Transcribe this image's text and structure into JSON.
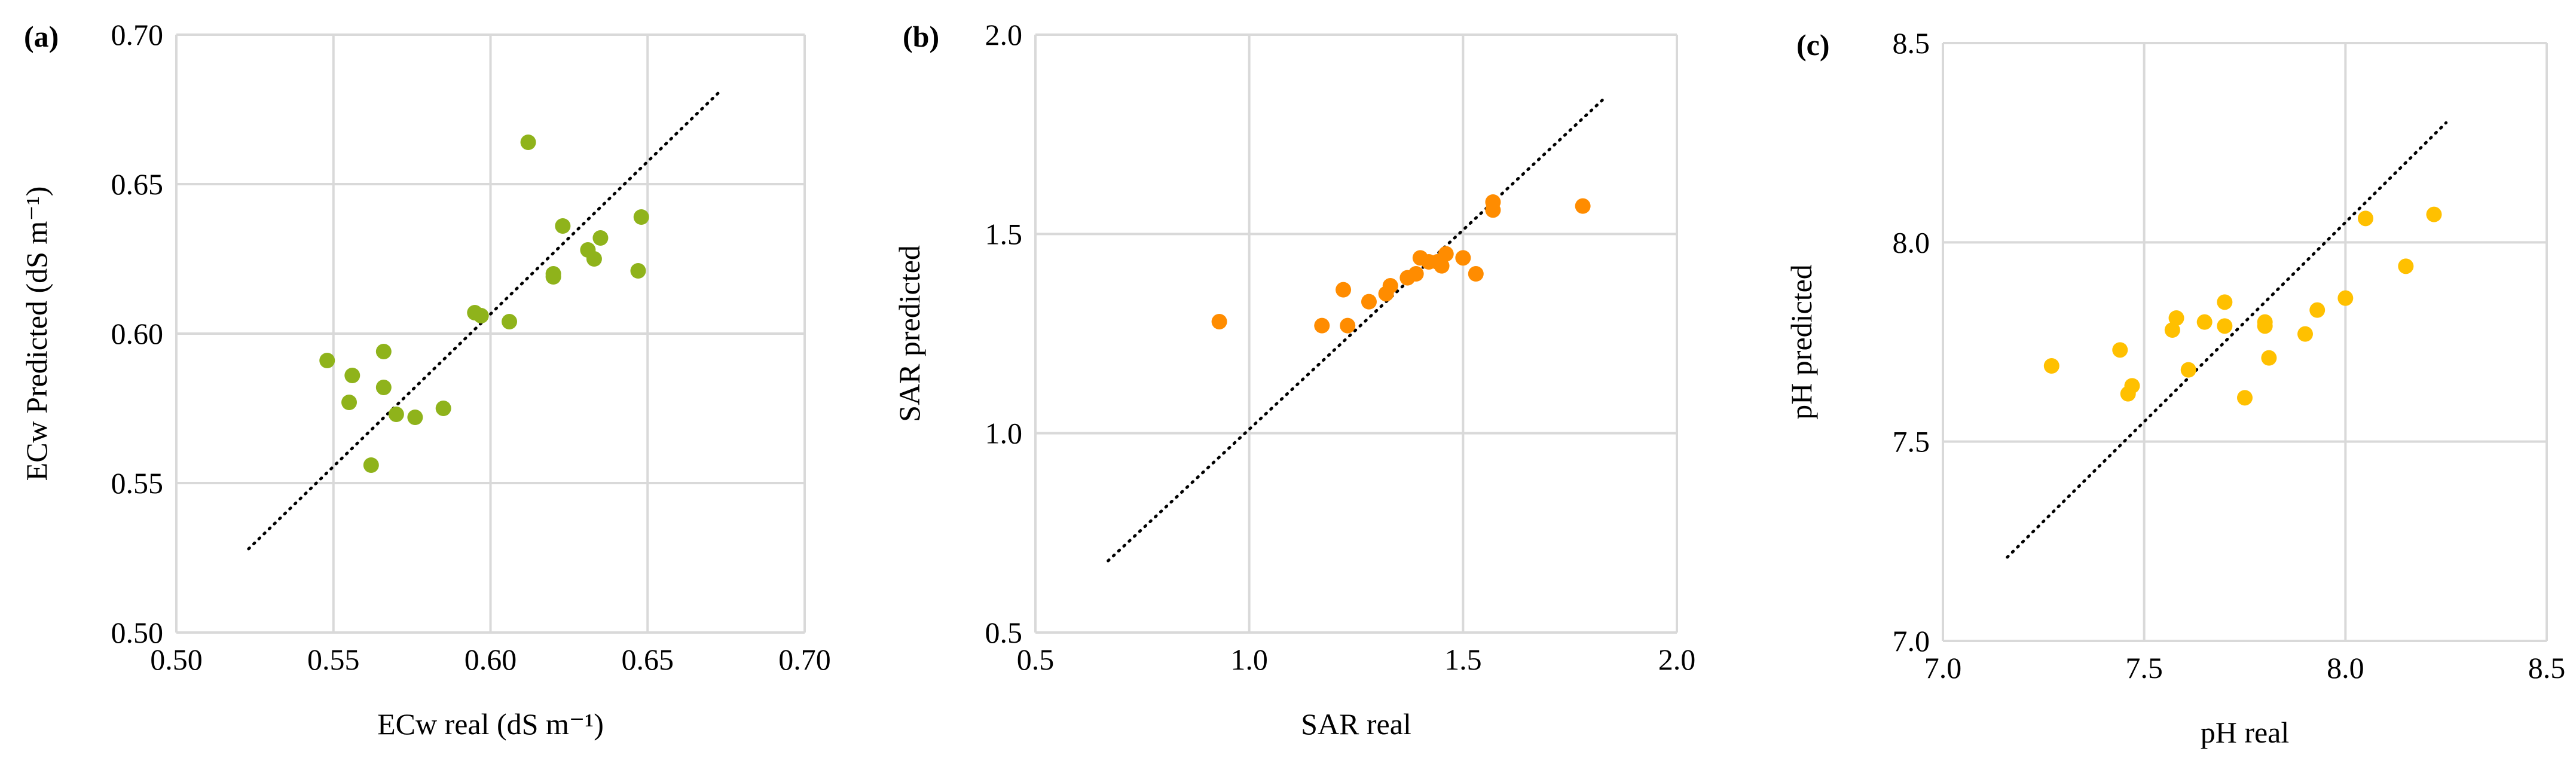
{
  "figure": {
    "panels": [
      "(a)",
      "(b)",
      "(c)"
    ]
  },
  "chart_data": [
    {
      "type": "scatter",
      "panel_label": "(a)",
      "xlabel": "ECw real (dS m⁻¹)",
      "ylabel": "ECw Predicted (dS m⁻¹)",
      "xlim": [
        0.5,
        0.7
      ],
      "ylim": [
        0.5,
        0.7
      ],
      "xticks": [
        0.5,
        0.55,
        0.6,
        0.65,
        0.7
      ],
      "yticks": [
        0.5,
        0.55,
        0.6,
        0.65,
        0.7
      ],
      "tick_labels_x": [
        "0.50",
        "0.55",
        "0.60",
        "0.65",
        "0.70"
      ],
      "tick_labels_y": [
        "0.50",
        "0.55",
        "0.60",
        "0.65",
        "0.70"
      ],
      "grid": true,
      "point_color": "#8fb31b",
      "reference_line": {
        "style": "dotted",
        "from": [
          0.523,
          0.528
        ],
        "to": [
          0.673,
          0.681
        ]
      },
      "x": [
        0.548,
        0.555,
        0.556,
        0.562,
        0.566,
        0.566,
        0.57,
        0.576,
        0.585,
        0.595,
        0.597,
        0.606,
        0.612,
        0.62,
        0.62,
        0.623,
        0.631,
        0.633,
        0.635,
        0.647,
        0.648
      ],
      "y": [
        0.591,
        0.577,
        0.586,
        0.556,
        0.594,
        0.582,
        0.573,
        0.572,
        0.575,
        0.607,
        0.606,
        0.604,
        0.664,
        0.619,
        0.62,
        0.636,
        0.628,
        0.625,
        0.632,
        0.621,
        0.639
      ]
    },
    {
      "type": "scatter",
      "panel_label": "(b)",
      "xlabel": "SAR real",
      "ylabel": "SAR predicted",
      "xlim": [
        0.5,
        2.0
      ],
      "ylim": [
        0.5,
        2.0
      ],
      "xticks": [
        0.5,
        1.0,
        1.5,
        2.0
      ],
      "yticks": [
        0.5,
        1.0,
        1.5,
        2.0
      ],
      "tick_labels_x": [
        "0.5",
        "1.0",
        "1.5",
        "2.0"
      ],
      "tick_labels_y": [
        "0.5",
        "1.0",
        "1.5",
        "2.0"
      ],
      "grid": true,
      "point_color": "#ff8c00",
      "reference_line": {
        "style": "dotted",
        "from": [
          0.67,
          0.68
        ],
        "to": [
          1.83,
          1.84
        ]
      },
      "x": [
        0.93,
        1.17,
        1.22,
        1.23,
        1.28,
        1.32,
        1.33,
        1.37,
        1.39,
        1.4,
        1.42,
        1.44,
        1.45,
        1.46,
        1.5,
        1.53,
        1.57,
        1.57,
        1.78
      ],
      "y": [
        1.28,
        1.27,
        1.36,
        1.27,
        1.33,
        1.35,
        1.37,
        1.39,
        1.4,
        1.44,
        1.43,
        1.43,
        1.42,
        1.45,
        1.44,
        1.4,
        1.56,
        1.58,
        1.57
      ]
    },
    {
      "type": "scatter",
      "panel_label": "(c)",
      "xlabel": "pH real",
      "ylabel": "pH predicted",
      "xlim": [
        7.0,
        8.5
      ],
      "ylim": [
        7.0,
        8.5
      ],
      "xticks": [
        7.0,
        7.5,
        8.0,
        8.5
      ],
      "yticks": [
        7.0,
        7.5,
        8.0,
        8.5
      ],
      "tick_labels_x": [
        "7.0",
        "7.5",
        "8.0",
        "8.5"
      ],
      "tick_labels_y": [
        "7.0",
        "7.5",
        "8.0",
        "8.5"
      ],
      "grid": true,
      "point_color": "#ffc000",
      "reference_line": {
        "style": "dotted",
        "from": [
          7.16,
          7.21
        ],
        "to": [
          8.25,
          8.3
        ]
      },
      "x": [
        7.27,
        7.44,
        7.46,
        7.47,
        7.57,
        7.58,
        7.61,
        7.65,
        7.7,
        7.7,
        7.75,
        7.8,
        7.8,
        7.81,
        7.9,
        7.93,
        8.0,
        8.05,
        8.15,
        8.22
      ],
      "y": [
        7.69,
        7.73,
        7.62,
        7.64,
        7.78,
        7.81,
        7.68,
        7.8,
        7.85,
        7.79,
        7.61,
        7.79,
        7.8,
        7.71,
        7.77,
        7.83,
        7.86,
        8.06,
        7.94,
        8.07
      ]
    }
  ]
}
